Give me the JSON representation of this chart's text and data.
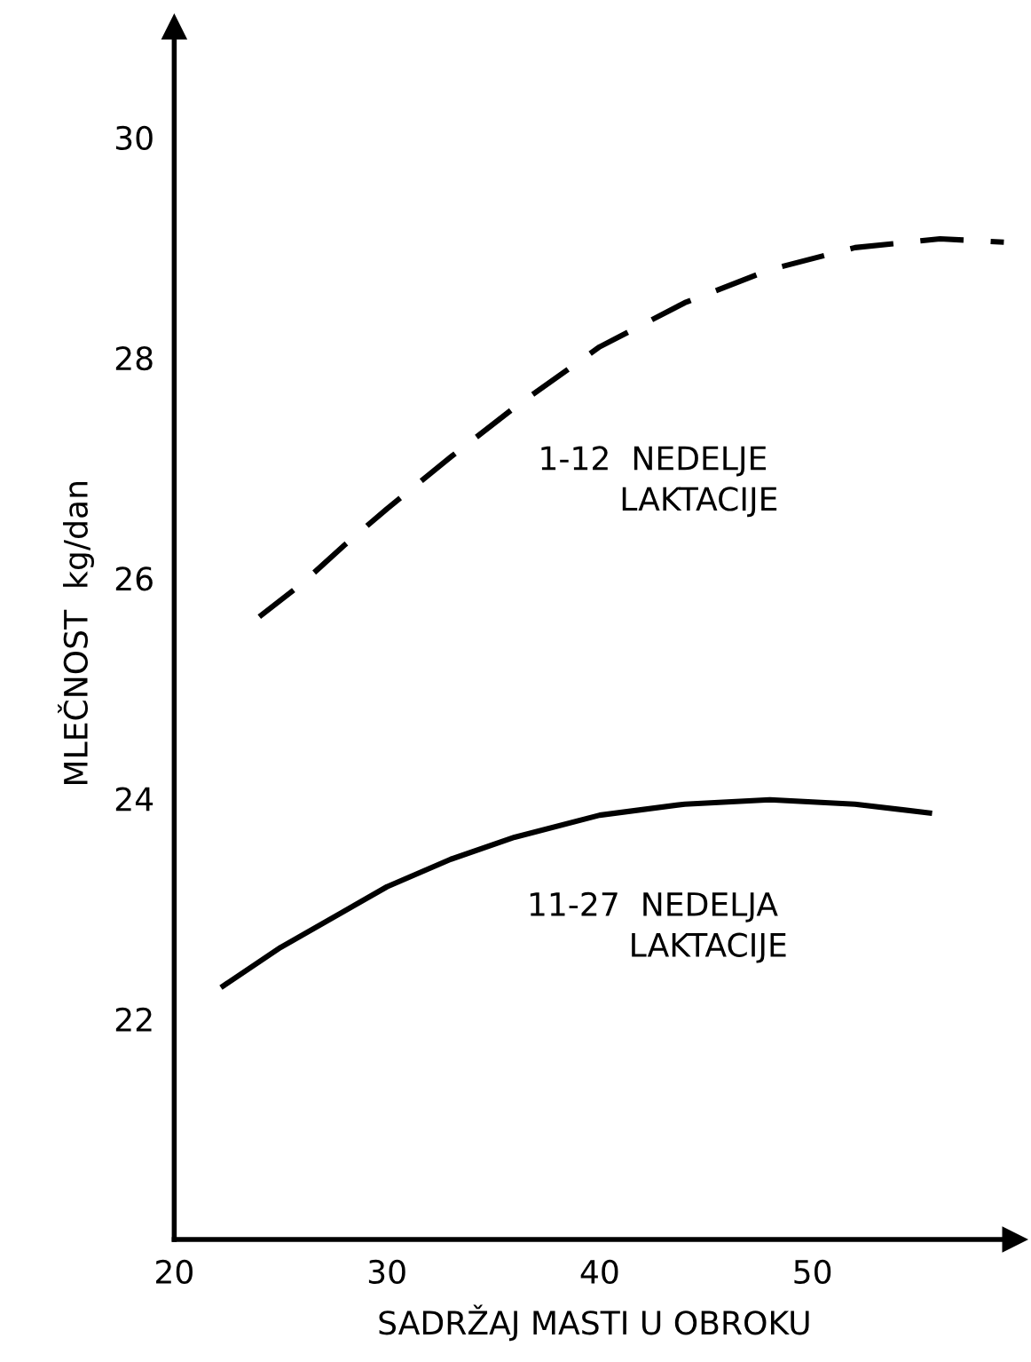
{
  "chart_data": {
    "type": "line",
    "xlabel": "SADRŽAJ MASTI U OBROKU",
    "ylabel": "MLEČNOST  kg/dan",
    "xlim": [
      20,
      59.5
    ],
    "ylim": [
      20,
      31
    ],
    "xticks": [
      20,
      30,
      40,
      50
    ],
    "yticks": [
      22,
      24,
      26,
      28,
      30
    ],
    "grid": false,
    "marker": "none",
    "series": [
      {
        "name": "1-12  NEDELJE\n        LAKTACIJE",
        "color": "#000000",
        "line_style": "dashed",
        "x": [
          24,
          26,
          28,
          30,
          33,
          36,
          40,
          44,
          48,
          52,
          56,
          59
        ],
        "values": [
          25.65,
          25.95,
          26.3,
          26.63,
          27.1,
          27.55,
          28.1,
          28.5,
          28.8,
          29.0,
          29.08,
          29.05
        ]
      },
      {
        "name": "11-27  NEDELJA\n          LAKTACIJE",
        "color": "#000000",
        "line_style": "solid",
        "x": [
          22.3,
          25,
          28,
          30,
          33,
          36,
          40,
          44,
          48,
          52,
          55.5
        ],
        "values": [
          22.3,
          22.65,
          22.98,
          23.2,
          23.45,
          23.65,
          23.85,
          23.95,
          23.99,
          23.95,
          23.87
        ]
      }
    ]
  }
}
